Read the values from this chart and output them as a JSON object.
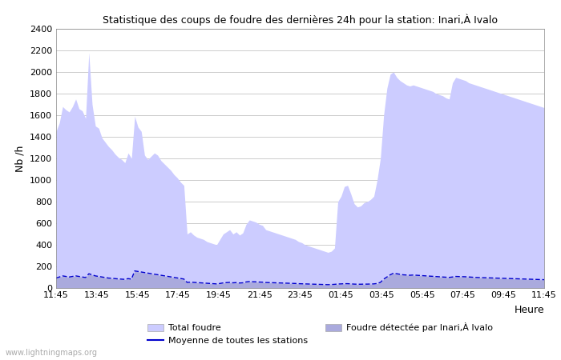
{
  "title": "Statistique des coups de foudre des dernières 24h pour la station: Inari,À Ivalo",
  "xlabel": "Heure",
  "ylabel": "Nb /h",
  "watermark": "www.lightningmaps.org",
  "x_labels": [
    "11:45",
    "13:45",
    "15:45",
    "17:45",
    "19:45",
    "21:45",
    "23:45",
    "01:45",
    "03:45",
    "05:45",
    "07:45",
    "09:45",
    "11:45"
  ],
  "ylim": [
    0,
    2400
  ],
  "yticks": [
    0,
    200,
    400,
    600,
    800,
    1000,
    1200,
    1400,
    1600,
    1800,
    2000,
    2200,
    2400
  ],
  "total_foudre_color": "#ccccff",
  "local_foudre_color": "#aaaadd",
  "mean_line_color": "#0000cc",
  "bg_color": "#ffffff",
  "grid_color": "#cccccc",
  "total_foudre": [
    1450,
    1530,
    1680,
    1650,
    1630,
    1680,
    1750,
    1660,
    1640,
    1570,
    2180,
    1700,
    1500,
    1480,
    1390,
    1350,
    1310,
    1280,
    1240,
    1210,
    1190,
    1160,
    1250,
    1200,
    1590,
    1490,
    1450,
    1230,
    1190,
    1220,
    1250,
    1230,
    1180,
    1150,
    1120,
    1090,
    1050,
    1020,
    980,
    950,
    500,
    520,
    490,
    470,
    460,
    450,
    430,
    420,
    410,
    400,
    450,
    500,
    520,
    540,
    500,
    520,
    490,
    510,
    590,
    630,
    620,
    610,
    590,
    580,
    540,
    530,
    520,
    510,
    500,
    490,
    480,
    470,
    460,
    450,
    430,
    420,
    400,
    390,
    380,
    370,
    360,
    350,
    340,
    330,
    340,
    370,
    800,
    850,
    940,
    950,
    870,
    780,
    750,
    760,
    790,
    800,
    820,
    850,
    1000,
    1200,
    1600,
    1850,
    1980,
    2000,
    1950,
    1920,
    1900,
    1880,
    1870,
    1880,
    1870,
    1860,
    1850,
    1840,
    1830,
    1820,
    1800,
    1790,
    1780,
    1760,
    1750,
    1900,
    1950,
    1940,
    1930,
    1920,
    1900,
    1890,
    1880,
    1870,
    1860,
    1850,
    1840,
    1830,
    1820,
    1810,
    1800,
    1790,
    1780,
    1770,
    1760,
    1750,
    1740,
    1730,
    1720,
    1710,
    1700,
    1690,
    1680,
    1670
  ],
  "local_foudre": [
    90,
    100,
    110,
    105,
    100,
    105,
    110,
    105,
    100,
    95,
    130,
    120,
    110,
    105,
    100,
    95,
    90,
    88,
    85,
    82,
    80,
    78,
    85,
    80,
    155,
    150,
    145,
    140,
    135,
    130,
    125,
    120,
    115,
    110,
    105,
    100,
    95,
    90,
    85,
    80,
    50,
    52,
    50,
    48,
    46,
    44,
    42,
    40,
    38,
    36,
    40,
    45,
    48,
    50,
    46,
    48,
    44,
    46,
    54,
    58,
    56,
    55,
    53,
    52,
    49,
    48,
    47,
    46,
    45,
    44,
    43,
    42,
    41,
    40,
    38,
    37,
    36,
    35,
    34,
    33,
    32,
    31,
    30,
    29,
    30,
    32,
    35,
    36,
    38,
    38,
    36,
    34,
    33,
    33,
    34,
    34,
    35,
    36,
    40,
    50,
    80,
    100,
    120,
    135,
    130,
    125,
    120,
    118,
    116,
    118,
    116,
    114,
    112,
    110,
    108,
    106,
    104,
    102,
    100,
    98,
    96,
    100,
    105,
    104,
    103,
    102,
    100,
    98,
    96,
    95,
    94,
    93,
    92,
    91,
    90,
    89,
    88,
    87,
    86,
    85,
    84,
    83,
    82,
    81,
    80,
    79,
    78,
    77,
    76,
    75
  ],
  "mean_line": [
    92,
    102,
    112,
    107,
    102,
    107,
    112,
    107,
    102,
    97,
    132,
    122,
    112,
    107,
    102,
    97,
    92,
    90,
    87,
    84,
    82,
    80,
    87,
    82,
    158,
    153,
    148,
    143,
    138,
    133,
    128,
    123,
    118,
    113,
    108,
    103,
    98,
    93,
    88,
    83,
    52,
    54,
    52,
    50,
    48,
    46,
    44,
    42,
    40,
    38,
    42,
    47,
    50,
    52,
    48,
    50,
    46,
    48,
    56,
    60,
    58,
    57,
    55,
    54,
    51,
    50,
    49,
    48,
    47,
    46,
    45,
    44,
    43,
    42,
    40,
    39,
    38,
    37,
    36,
    35,
    34,
    33,
    32,
    31,
    32,
    34,
    37,
    38,
    40,
    40,
    38,
    36,
    35,
    35,
    36,
    36,
    37,
    38,
    42,
    52,
    82,
    102,
    122,
    137,
    132,
    127,
    122,
    120,
    118,
    120,
    118,
    116,
    114,
    112,
    110,
    108,
    106,
    104,
    102,
    100,
    98,
    102,
    107,
    106,
    105,
    104,
    102,
    100,
    98,
    97,
    96,
    95,
    94,
    93,
    92,
    91,
    90,
    89,
    88,
    87,
    86,
    85,
    84,
    83,
    82,
    81,
    80,
    79,
    78,
    77
  ],
  "n_points": 150,
  "legend_total": "Total foudre",
  "legend_mean": "Moyenne de toutes les stations",
  "legend_local": "Foudre détectée par Inari,À Ivalo"
}
